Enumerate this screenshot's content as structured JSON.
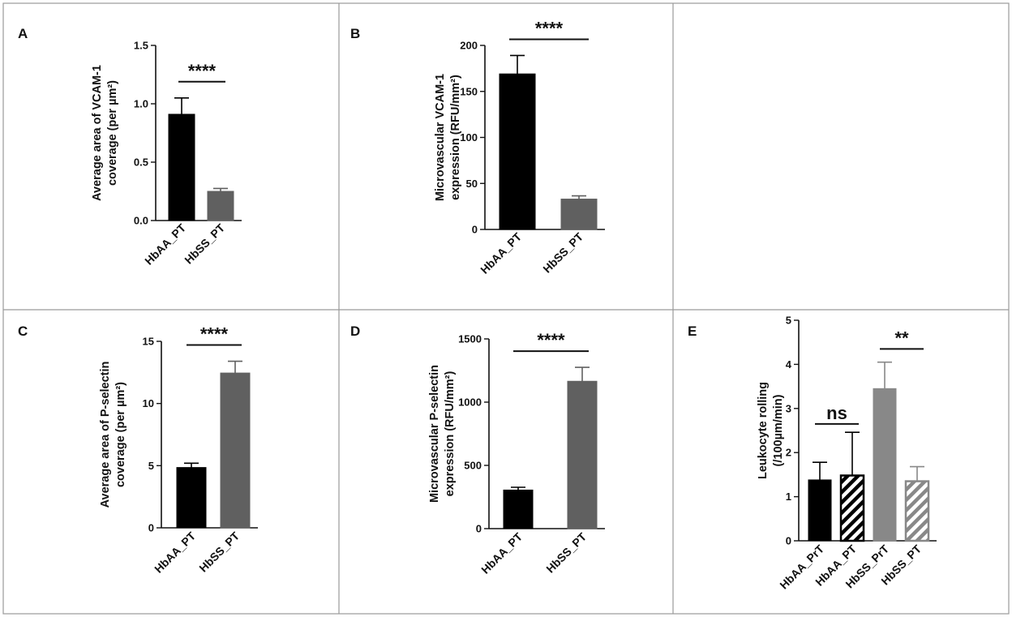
{
  "chart_data": [
    {
      "panel": "A",
      "type": "bar",
      "ylabel_lines": [
        "Average area of VCAM-1",
        "coverage (per µm²)"
      ],
      "categories": [
        "HbAA_PT",
        "HbSS_PT"
      ],
      "values": [
        0.91,
        0.25
      ],
      "errors": [
        0.14,
        0.025
      ],
      "colors": [
        "#000000",
        "#606060"
      ],
      "patterns": [
        "solid",
        "solid"
      ],
      "ylim": [
        0,
        1.5
      ],
      "yticks": [
        0.0,
        0.5,
        1.0,
        1.5
      ],
      "ytick_labels": [
        "0.0",
        "0.5",
        "1.0",
        "1.5"
      ],
      "comparisons": [
        {
          "from": 0,
          "to": 1,
          "label": "****"
        }
      ]
    },
    {
      "panel": "B",
      "type": "bar",
      "ylabel_lines": [
        "Microvascular VCAM-1",
        "expression (RFU/mm²)"
      ],
      "categories": [
        "HbAA_PT",
        "HbSS_PT"
      ],
      "values": [
        169,
        33
      ],
      "errors": [
        20,
        3.5
      ],
      "colors": [
        "#000000",
        "#606060"
      ],
      "patterns": [
        "solid",
        "solid"
      ],
      "ylim": [
        0,
        200
      ],
      "yticks": [
        0,
        50,
        100,
        150,
        200
      ],
      "ytick_labels": [
        "0",
        "50",
        "100",
        "150",
        "200"
      ],
      "comparisons": [
        {
          "from": 0,
          "to": 1,
          "label": "****"
        }
      ]
    },
    {
      "panel": "C",
      "type": "bar",
      "ylabel_lines": [
        "Average area of P-selectin",
        "coverage (per µm²)"
      ],
      "categories": [
        "HbAA_PT",
        "HbSS_PT"
      ],
      "values": [
        4.85,
        12.45
      ],
      "errors": [
        0.35,
        0.95
      ],
      "colors": [
        "#000000",
        "#606060"
      ],
      "patterns": [
        "solid",
        "solid"
      ],
      "ylim": [
        0,
        15
      ],
      "yticks": [
        0,
        5,
        10,
        15
      ],
      "ytick_labels": [
        "0",
        "5",
        "10",
        "15"
      ],
      "comparisons": [
        {
          "from": 0,
          "to": 1,
          "label": "****"
        }
      ]
    },
    {
      "panel": "D",
      "type": "bar",
      "ylabel_lines": [
        "Microvascular P-selectin",
        "expression (RFU/mm²)"
      ],
      "categories": [
        "HbAA_PT",
        "HbSS_PT"
      ],
      "values": [
        305,
        1165
      ],
      "errors": [
        22,
        110
      ],
      "colors": [
        "#000000",
        "#606060"
      ],
      "patterns": [
        "solid",
        "solid"
      ],
      "ylim": [
        0,
        1500
      ],
      "yticks": [
        0,
        500,
        1000,
        1500
      ],
      "ytick_labels": [
        "0",
        "500",
        "1000",
        "1500"
      ],
      "comparisons": [
        {
          "from": 0,
          "to": 1,
          "label": "****"
        }
      ]
    },
    {
      "panel": "E",
      "type": "bar",
      "ylabel_lines": [
        "Leukocyte rolling",
        "(/100µm/min)"
      ],
      "categories": [
        "HbAA_PrT",
        "HbAA_PT",
        "HbSS_PrT",
        "HbSS_PT"
      ],
      "values": [
        1.38,
        1.48,
        3.45,
        1.35
      ],
      "errors": [
        0.4,
        0.98,
        0.6,
        0.33
      ],
      "colors": [
        "#000000",
        "#000000",
        "#888888",
        "#888888"
      ],
      "patterns": [
        "solid",
        "hatch",
        "solid",
        "hatch"
      ],
      "ylim": [
        0,
        5
      ],
      "yticks": [
        0,
        1,
        2,
        3,
        4,
        5
      ],
      "ytick_labels": [
        "0",
        "1",
        "2",
        "3",
        "4",
        "5"
      ],
      "comparisons": [
        {
          "from": 0,
          "to": 1,
          "label": "ns"
        },
        {
          "from": 2,
          "to": 3,
          "label": "**"
        }
      ]
    }
  ]
}
